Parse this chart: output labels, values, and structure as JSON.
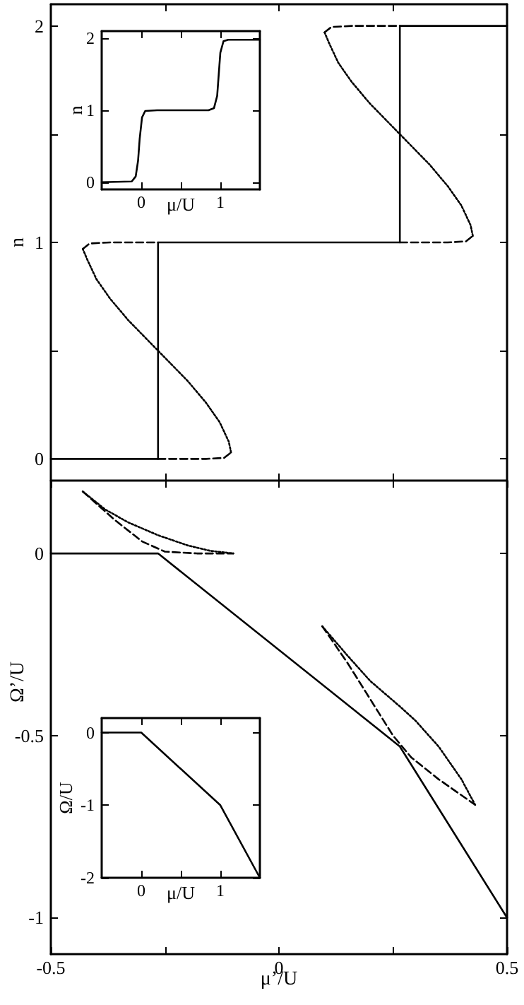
{
  "chart_data": [
    {
      "type": "line",
      "ylabel": "n",
      "xlim": [
        -0.5,
        0.5
      ],
      "ylim": [
        -0.1,
        2.1
      ],
      "xticks": [
        {
          "value": -0.25,
          "label": null
        },
        {
          "value": 0,
          "label": null
        },
        {
          "value": 0.25,
          "label": null
        }
      ],
      "yticks": [
        0,
        {
          "value": 0.5,
          "label": null
        },
        1,
        {
          "value": 1.5,
          "label": null
        },
        2
      ],
      "tick_labels": "y",
      "grid": false,
      "series": [
        {
          "color": "#000000",
          "line_style": "solid",
          "x": [
            -0.5,
            -0.265,
            -0.265,
            0.265,
            0.265,
            0.5
          ],
          "values": [
            0,
            0,
            1,
            1,
            2,
            2
          ]
        },
        {
          "color": "#000000",
          "line_style": "dashed",
          "x": [
            -0.265,
            -0.16,
            -0.12,
            -0.105
          ],
          "values": [
            0,
            0,
            0.005,
            0.03
          ]
        },
        {
          "color": "#000000",
          "line_style": "dotted",
          "x": [
            -0.105,
            -0.11,
            -0.13,
            -0.16,
            -0.2,
            -0.265,
            -0.33,
            -0.37,
            -0.4,
            -0.42,
            -0.43
          ],
          "values": [
            0.03,
            0.08,
            0.17,
            0.26,
            0.36,
            0.5,
            0.64,
            0.74,
            0.83,
            0.92,
            0.97
          ]
        },
        {
          "color": "#000000",
          "line_style": "dashed",
          "x": [
            -0.43,
            -0.415,
            -0.37,
            -0.265
          ],
          "values": [
            0.97,
            0.995,
            1,
            1
          ]
        },
        {
          "color": "#000000",
          "line_style": "dashed",
          "x": [
            0.265,
            0.37,
            0.41,
            0.425
          ],
          "values": [
            1,
            1,
            1.005,
            1.03
          ]
        },
        {
          "color": "#000000",
          "line_style": "dotted",
          "x": [
            0.425,
            0.42,
            0.4,
            0.37,
            0.33,
            0.265,
            0.2,
            0.16,
            0.13,
            0.11,
            0.1
          ],
          "values": [
            1.03,
            1.08,
            1.17,
            1.26,
            1.36,
            1.5,
            1.64,
            1.74,
            1.83,
            1.92,
            1.97
          ]
        },
        {
          "color": "#000000",
          "line_style": "dashed",
          "x": [
            0.1,
            0.115,
            0.16,
            0.265
          ],
          "values": [
            1.97,
            1.995,
            2,
            2
          ]
        }
      ]
    },
    {
      "type": "line",
      "xlabel": "μ/U",
      "ylabel": "n",
      "xlim": [
        -0.5,
        1.5
      ],
      "ylim": [
        -0.1,
        2.1
      ],
      "xticks": [
        0,
        {
          "value": 0.5,
          "label": null
        },
        1
      ],
      "yticks": [
        0,
        1,
        2
      ],
      "grid": false,
      "series": [
        {
          "color": "#000000",
          "line_style": "solid",
          "x": [
            -0.5,
            -0.12,
            -0.07,
            -0.04,
            -0.02,
            0.01,
            0.05,
            0.2,
            0.85,
            0.92,
            0.96,
            0.98,
            1.0,
            1.04,
            1.1,
            1.5
          ],
          "values": [
            0,
            0.01,
            0.08,
            0.3,
            0.6,
            0.9,
            0.99,
            1,
            1,
            1.03,
            1.2,
            1.5,
            1.8,
            1.96,
            1.98,
            1.98
          ]
        }
      ]
    },
    {
      "type": "line",
      "xlabel": "μ’/U",
      "ylabel": "Ω’/U",
      "xlim": [
        -0.5,
        0.5
      ],
      "ylim": [
        -1.1,
        0.2
      ],
      "xticks": [
        -0.5,
        {
          "value": -0.25,
          "label": null
        },
        0,
        {
          "value": 0.25,
          "label": null
        },
        0.5
      ],
      "yticks": [
        -1,
        -0.5,
        0
      ],
      "grid": false,
      "series": [
        {
          "color": "#000000",
          "line_style": "solid",
          "x": [
            -0.5,
            -0.265,
            0.265,
            0.5
          ],
          "values": [
            0,
            0,
            -0.53,
            -1
          ]
        },
        {
          "color": "#000000",
          "line_style": "dashed",
          "x": [
            -0.43,
            -0.36,
            -0.3,
            -0.25,
            -0.18,
            -0.1
          ],
          "values": [
            0.17,
            0.092,
            0.033,
            0.005,
            0,
            0
          ]
        },
        {
          "color": "#000000",
          "line_style": "dotted",
          "x": [
            -0.43,
            -0.38,
            -0.33,
            -0.265,
            -0.2,
            -0.15,
            -0.1
          ],
          "values": [
            0.17,
            0.12,
            0.085,
            0.05,
            0.022,
            0.007,
            0
          ]
        },
        {
          "color": "#000000",
          "line_style": "dashed",
          "x": [
            0.095,
            0.15,
            0.2,
            0.25,
            0.29,
            0.35,
            0.43
          ],
          "values": [
            -0.2,
            -0.3,
            -0.4,
            -0.5,
            -0.56,
            -0.62,
            -0.69
          ]
        },
        {
          "color": "#000000",
          "line_style": "dotted",
          "x": [
            0.095,
            0.15,
            0.2,
            0.265,
            0.3,
            0.35,
            0.4,
            0.43
          ],
          "values": [
            -0.2,
            -0.28,
            -0.35,
            -0.42,
            -0.46,
            -0.53,
            -0.62,
            -0.69
          ]
        }
      ]
    },
    {
      "type": "line",
      "xlabel": "μ/U",
      "ylabel": "Ω/U",
      "xlim": [
        -0.5,
        1.5
      ],
      "ylim": [
        -2,
        0.2
      ],
      "xticks": [
        0,
        {
          "value": 0.5,
          "label": null
        },
        1
      ],
      "yticks": [
        -2,
        -1,
        0
      ],
      "grid": false,
      "series": [
        {
          "color": "#000000",
          "line_style": "solid",
          "x": [
            -0.5,
            0,
            1,
            1.5
          ],
          "values": [
            0,
            0,
            -1,
            -2
          ]
        }
      ]
    }
  ]
}
